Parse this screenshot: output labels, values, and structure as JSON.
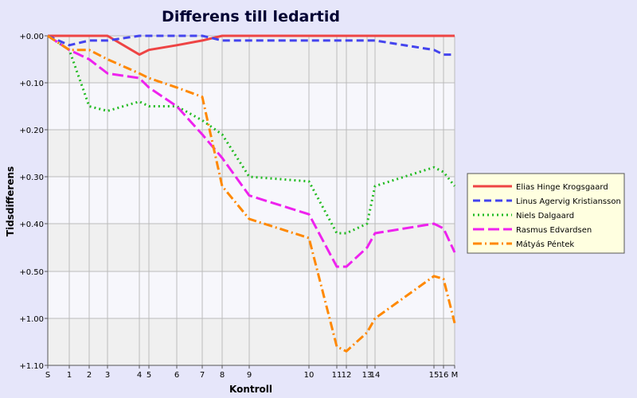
{
  "chart_data": {
    "type": "line",
    "title": "Differens till ledartid",
    "xlabel": "Kontroll",
    "ylabel": "Tidsdifferens",
    "x_tick_labels": [
      "S",
      "1",
      "2",
      "3",
      "4",
      "5",
      "6",
      "7",
      "8",
      "9",
      "10",
      "11",
      "12",
      "13",
      "14",
      "15",
      "16",
      "M"
    ],
    "y_tick_labels": [
      "+0.00",
      "+0.10",
      "+0.20",
      "+0.30",
      "+0.40",
      "+0.50",
      "+1.00",
      "+1.10"
    ],
    "grid": true,
    "legend_position": "right",
    "x": [
      "S",
      "1",
      "2",
      "3",
      "4",
      "5",
      "6",
      "7",
      "8",
      "9",
      "10",
      "11",
      "12",
      "13",
      "14",
      "15",
      "16",
      "M"
    ],
    "series": [
      {
        "name": "Elias Hinge Krogsgaard",
        "color": "#ee4444",
        "style": "solid",
        "values": [
          "+0.00",
          "+0.00",
          "+0.00",
          "+0.00",
          "+0.04",
          "+0.03",
          "+0.02",
          "+0.01",
          "+0.00",
          "+0.00",
          "+0.00",
          "+0.00",
          "+0.00",
          "+0.00",
          "+0.00",
          "+0.00",
          "+0.00",
          "+0.00"
        ]
      },
      {
        "name": "Linus Agervig Kristiansson",
        "color": "#4444ee",
        "style": "dashed",
        "values": [
          "+0.00",
          "+0.02",
          "+0.01",
          "+0.01",
          "+0.00",
          "+0.00",
          "+0.00",
          "+0.00",
          "+0.01",
          "+0.01",
          "+0.01",
          "+0.01",
          "+0.01",
          "+0.01",
          "+0.01",
          "+0.03",
          "+0.04",
          "+0.04"
        ]
      },
      {
        "name": "Niels Dalgaard",
        "color": "#22bb22",
        "style": "dotted",
        "values": [
          "+0.00",
          "+0.03",
          "+0.15",
          "+0.16",
          "+0.14",
          "+0.15",
          "+0.15",
          "+0.18",
          "+0.21",
          "+0.30",
          "+0.31",
          "+0.42",
          "+0.42",
          "+0.40",
          "+0.32",
          "+0.28",
          "+0.29",
          "+0.32"
        ]
      },
      {
        "name": "Rasmus Edvardsen",
        "color": "#ee22ee",
        "style": "longdash",
        "values": [
          "+0.00",
          "+0.03",
          "+0.05",
          "+0.08",
          "+0.09",
          "+0.11",
          "+0.15",
          "+0.21",
          "+0.26",
          "+0.34",
          "+0.38",
          "+0.49",
          "+0.49",
          "+0.45",
          "+0.42",
          "+0.40",
          "+0.41",
          "+0.46"
        ]
      },
      {
        "name": "Mátyás Péntek",
        "color": "#ff8800",
        "style": "dashdot",
        "values": [
          "+0.00",
          "+0.03",
          "+0.03",
          "+0.05",
          "+0.08",
          "+0.09",
          "+0.11",
          "+0.13",
          "+0.32",
          "+0.39",
          "+0.43",
          "+1.06",
          "+1.07",
          "+1.03",
          "+1.00",
          "+0.55",
          "+0.58",
          "+1.01"
        ]
      }
    ]
  }
}
